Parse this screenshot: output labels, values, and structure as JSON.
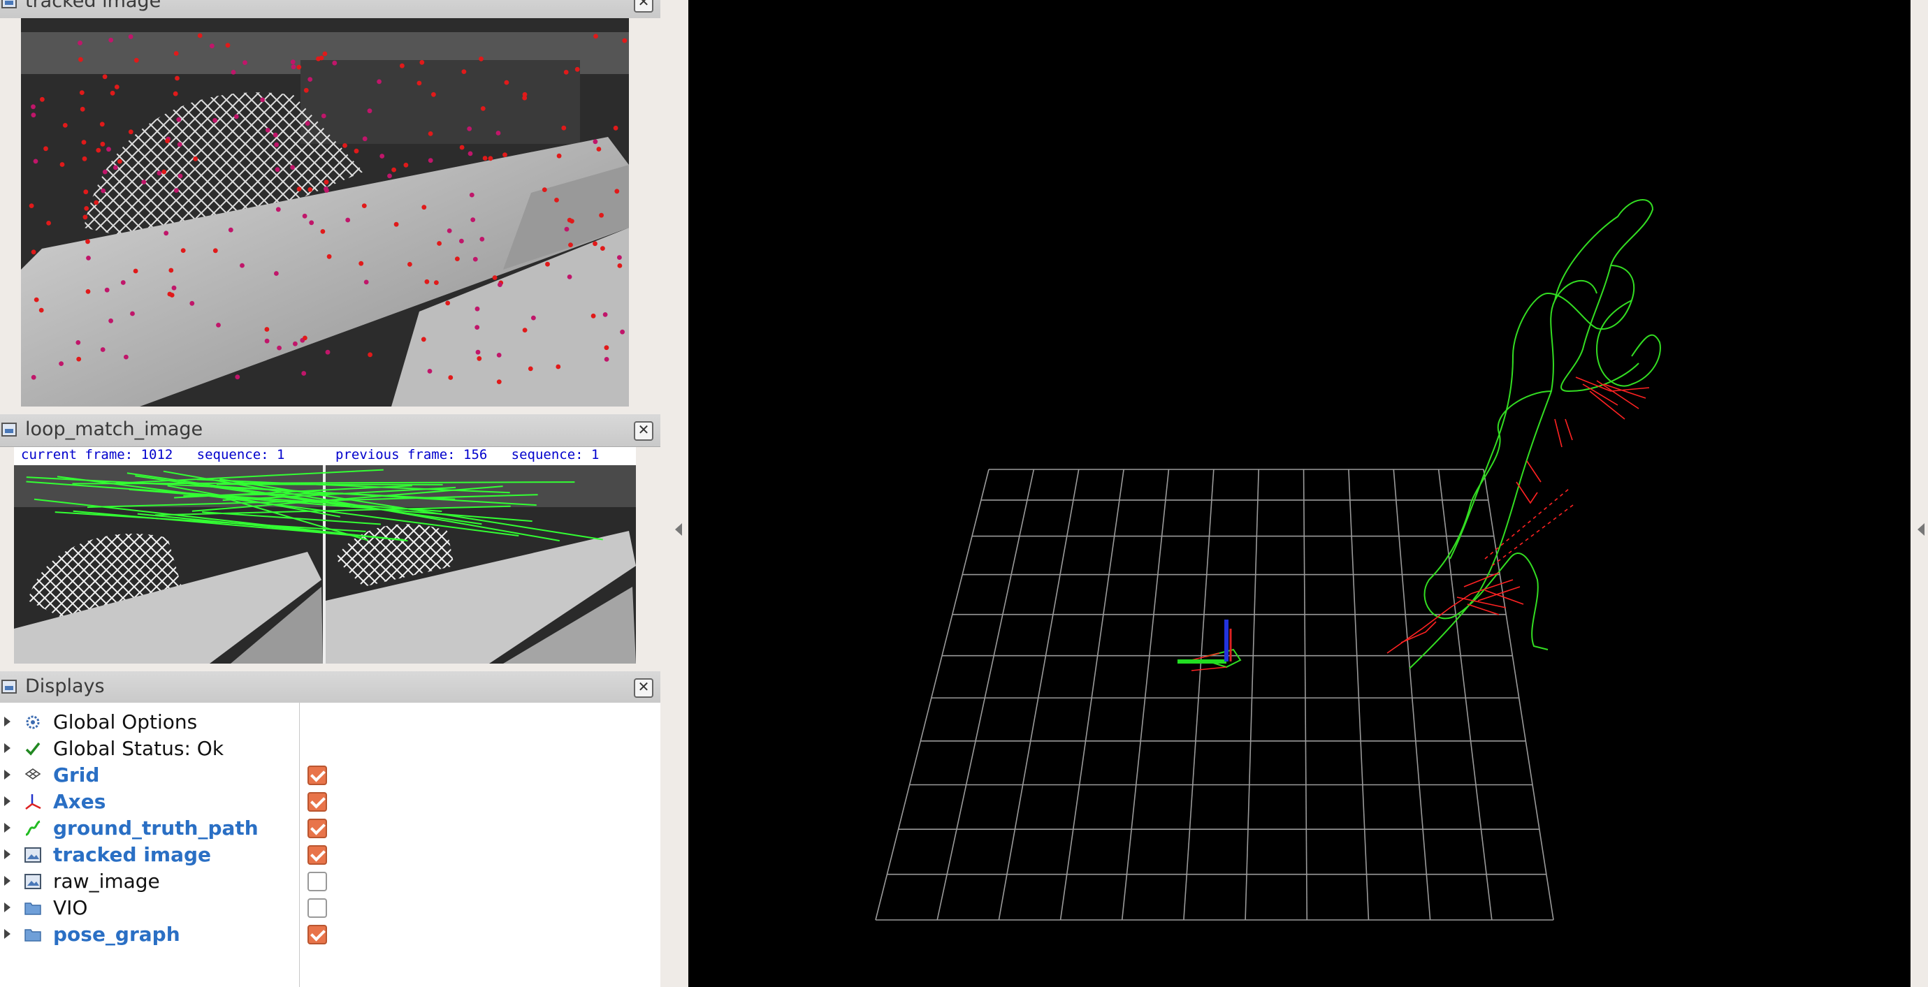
{
  "panels": {
    "tracked": {
      "title": "tracked image",
      "close": "✕"
    },
    "loop": {
      "title": "loop_match_image",
      "close": "✕",
      "left_caption": "current frame: 1012   sequence: 1",
      "right_caption": "previous frame: 156   sequence: 1"
    },
    "displays": {
      "title": "Displays",
      "close": "✕"
    }
  },
  "displays": {
    "items": [
      {
        "label": "Global Options",
        "icon": "gear-icon",
        "checked": null,
        "highlight": false
      },
      {
        "label": "Global Status: Ok",
        "icon": "checkmark-icon",
        "checked": null,
        "highlight": false
      },
      {
        "label": "Grid",
        "icon": "grid-icon",
        "checked": true,
        "highlight": true
      },
      {
        "label": "Axes",
        "icon": "axes-icon",
        "checked": true,
        "highlight": true
      },
      {
        "label": "ground_truth_path",
        "icon": "path-icon",
        "checked": true,
        "highlight": true
      },
      {
        "label": "tracked image",
        "icon": "image-icon",
        "checked": true,
        "highlight": true
      },
      {
        "label": "raw_image",
        "icon": "image-icon",
        "checked": false,
        "highlight": false
      },
      {
        "label": "VIO",
        "icon": "folder-icon",
        "checked": false,
        "highlight": false
      },
      {
        "label": "pose_graph",
        "icon": "folder-icon",
        "checked": true,
        "highlight": true
      }
    ]
  },
  "colors": {
    "accent": "#2a6fc4",
    "checkbox": "#e8744a",
    "path": "#33dd22",
    "pose_graph": "#ff2222"
  }
}
